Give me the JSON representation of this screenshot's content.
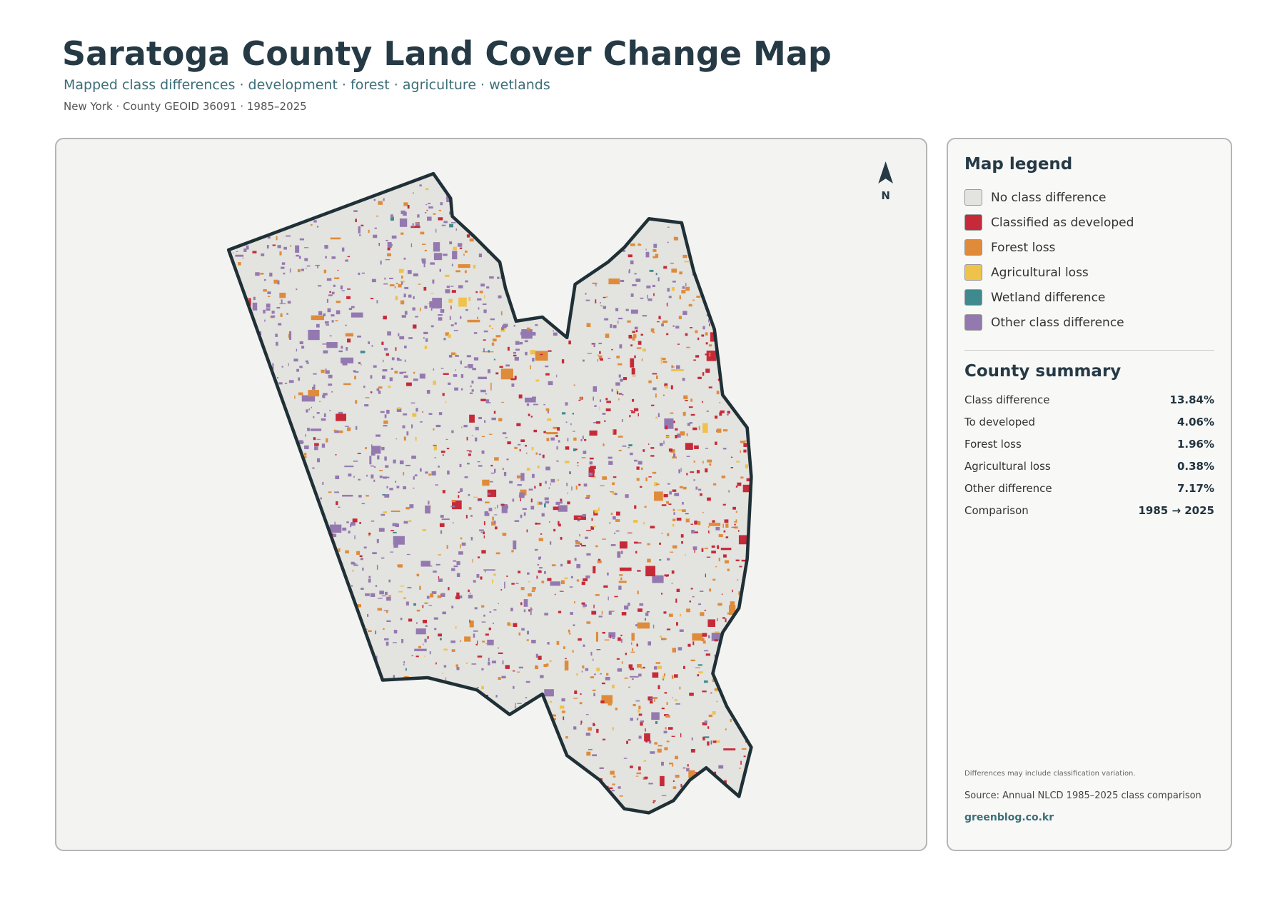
{
  "header": {
    "title": "Saratoga County Land Cover Change Map",
    "subtitle": "Mapped class differences · development · forest · agriculture · wetlands",
    "meta": "New York · County GEOID 36091 · 1985–2025"
  },
  "map": {
    "north": "N"
  },
  "legend": {
    "title": "Map legend",
    "items": [
      {
        "label": "No class difference",
        "color": "#e3e3df"
      },
      {
        "label": "Classified as developed",
        "color": "#c62a38"
      },
      {
        "label": "Forest loss",
        "color": "#df8b3a"
      },
      {
        "label": "Agricultural loss",
        "color": "#efc24a"
      },
      {
        "label": "Wetland difference",
        "color": "#3f8a8f"
      },
      {
        "label": "Other class difference",
        "color": "#9479b0"
      }
    ]
  },
  "summary": {
    "title": "County summary",
    "rows": [
      [
        "Class difference",
        "13.84%"
      ],
      [
        "To developed",
        "4.06%"
      ],
      [
        "Forest loss",
        "1.96%"
      ],
      [
        "Agricultural loss",
        "0.38%"
      ],
      [
        "Other difference",
        "7.17%"
      ],
      [
        "Comparison",
        "1985 → 2025"
      ]
    ]
  },
  "notes": {
    "caveat": "Differences may include classification variation.",
    "source": "Source: Annual NLCD 1985–2025 class comparison",
    "site": "greenblog.co.kr"
  }
}
